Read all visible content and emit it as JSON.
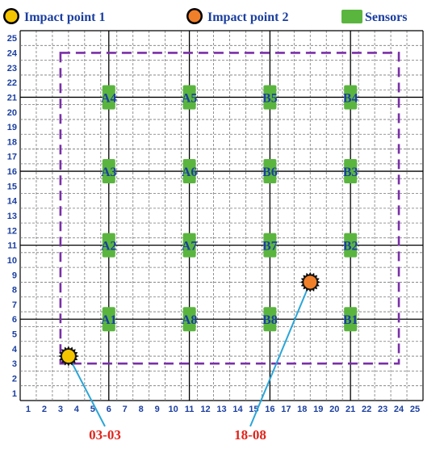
{
  "legend": {
    "impact1_label": "Impact point 1",
    "impact2_label": "Impact point 2",
    "sensors_label": "Sensors"
  },
  "grid": {
    "x_ticks": [
      "1",
      "2",
      "3",
      "4",
      "5",
      "6",
      "7",
      "8",
      "9",
      "10",
      "11",
      "12",
      "13",
      "14",
      "15",
      "16",
      "17",
      "18",
      "19",
      "20",
      "21",
      "22",
      "23",
      "24",
      "25"
    ],
    "y_ticks": [
      "1",
      "2",
      "3",
      "4",
      "5",
      "6",
      "7",
      "8",
      "9",
      "10",
      "11",
      "12",
      "13",
      "14",
      "15",
      "16",
      "17",
      "18",
      "19",
      "20",
      "21",
      "22",
      "23",
      "24",
      "25"
    ],
    "major_lines": [
      5.5,
      10.5,
      15.5,
      20.5
    ]
  },
  "boundary": {
    "x_min": 2.5,
    "x_max": 23.5,
    "y_min": 2.5,
    "y_max": 23.5
  },
  "sensors": [
    {
      "id": "A1",
      "x": 5.5,
      "y": 5.5
    },
    {
      "id": "A2",
      "x": 5.5,
      "y": 10.5
    },
    {
      "id": "A3",
      "x": 5.5,
      "y": 15.5
    },
    {
      "id": "A4",
      "x": 5.5,
      "y": 20.5
    },
    {
      "id": "A5",
      "x": 10.5,
      "y": 20.5
    },
    {
      "id": "A6",
      "x": 10.5,
      "y": 15.5
    },
    {
      "id": "A7",
      "x": 10.5,
      "y": 10.5
    },
    {
      "id": "A8",
      "x": 10.5,
      "y": 5.5
    },
    {
      "id": "B1",
      "x": 20.5,
      "y": 5.5
    },
    {
      "id": "B2",
      "x": 20.5,
      "y": 10.5
    },
    {
      "id": "B3",
      "x": 20.5,
      "y": 15.5
    },
    {
      "id": "B4",
      "x": 20.5,
      "y": 20.5
    },
    {
      "id": "B5",
      "x": 15.5,
      "y": 20.5
    },
    {
      "id": "B6",
      "x": 15.5,
      "y": 15.5
    },
    {
      "id": "B7",
      "x": 15.5,
      "y": 10.5
    },
    {
      "id": "B8",
      "x": 15.5,
      "y": 5.5
    }
  ],
  "impacts": [
    {
      "label": "03-03",
      "x": 3,
      "y": 3,
      "color": "#f5c400"
    },
    {
      "label": "18-08",
      "x": 18,
      "y": 8,
      "color": "#f07f2a"
    }
  ],
  "colors": {
    "sensor": "#5ab53f",
    "boundary": "#7a2fa8",
    "callout_line": "#2aa6d8",
    "label_blue": "#1a3ea0",
    "callout_red": "#e0241b"
  }
}
